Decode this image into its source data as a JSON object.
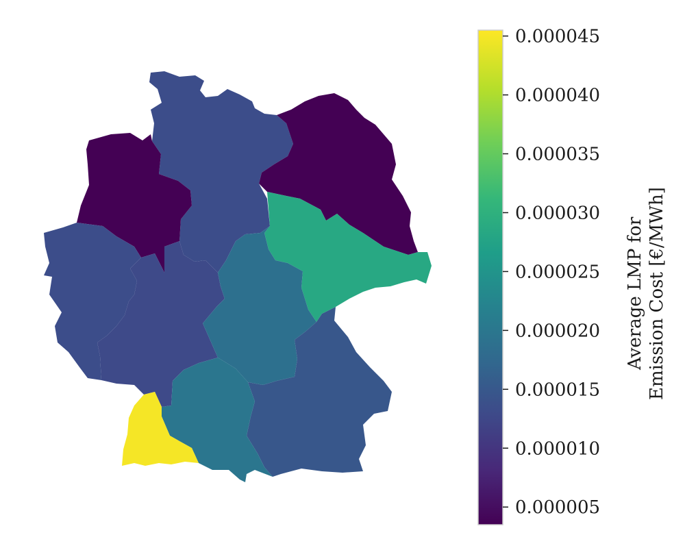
{
  "map": {
    "regions": [
      {
        "id": "schleswig-holstein-hamburg",
        "value": 1.35e-05
      },
      {
        "id": "lower-saxony",
        "value": 3.5e-06
      },
      {
        "id": "brandenburg-berlin-mv",
        "value": 3.5e-06
      },
      {
        "id": "saxony-anhalt-saxony",
        "value": 2.87e-05
      },
      {
        "id": "north-rhine-westphalia",
        "value": 1.35e-05
      },
      {
        "id": "hesse",
        "value": 1.3e-05
      },
      {
        "id": "thuringia",
        "value": 1.9e-05
      },
      {
        "id": "bavaria-north",
        "value": 1.5e-05
      },
      {
        "id": "baden-wuerttemberg-north",
        "value": 2e-05
      },
      {
        "id": "baden-wuerttemberg-south",
        "value": 4.5e-05
      }
    ]
  },
  "colorbar": {
    "title_line1": "Average LMP for",
    "title_line2": "Emission Cost [€/MWh]",
    "vmin": 3.5e-06,
    "vmax": 4.55e-05,
    "colormap": [
      "#440154",
      "#482878",
      "#3e4989",
      "#31688e",
      "#26828e",
      "#1f9e89",
      "#35b779",
      "#6ece58",
      "#b5de2b",
      "#fde725"
    ],
    "ticks": [
      {
        "value": 5e-06,
        "label": "0.000005"
      },
      {
        "value": 1e-05,
        "label": "0.000010"
      },
      {
        "value": 1.5e-05,
        "label": "0.000015"
      },
      {
        "value": 2e-05,
        "label": "0.000020"
      },
      {
        "value": 2.5e-05,
        "label": "0.000025"
      },
      {
        "value": 3e-05,
        "label": "0.000030"
      },
      {
        "value": 3.5e-05,
        "label": "0.000035"
      },
      {
        "value": 4e-05,
        "label": "0.000040"
      },
      {
        "value": 4.5e-05,
        "label": "0.000045"
      }
    ]
  }
}
